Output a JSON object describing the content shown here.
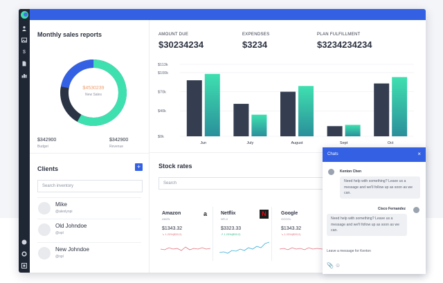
{
  "sales": {
    "title": "Monthly sales reports",
    "center_value": "$4530239",
    "center_label": "New Sales",
    "budget_value": "$342900",
    "budget_label": "Budget",
    "revenue_value": "$342900",
    "revenue_label": "Revenue",
    "donut_fraction": 0.58,
    "colors": {
      "green": "#3fe0b0",
      "blue": "#3461e4",
      "dark": "#2b3444"
    }
  },
  "clients": {
    "title": "Clients",
    "add_label": "+",
    "search_placeholder": "Search inventory",
    "items": [
      {
        "name": "Mike",
        "handle": "@alexlynpi"
      },
      {
        "name": "Old Johndoe",
        "handle": "@opl"
      },
      {
        "name": "New Johndoe",
        "handle": "@npl"
      }
    ]
  },
  "kpis": [
    {
      "label": "AMOUNT DUE",
      "value": "$30234234"
    },
    {
      "label": "EXPENDSES",
      "value": "$3234"
    },
    {
      "label": "PLAN FULFILLMENT",
      "value": "$3234234234"
    }
  ],
  "chart_data": {
    "type": "bar",
    "categories": [
      "Jun",
      "July",
      "August",
      "Sept",
      "Oct"
    ],
    "series": [
      {
        "values": [
          88,
          51,
          70,
          16,
          83
        ]
      },
      {
        "values": [
          98,
          34,
          79,
          18,
          93
        ]
      }
    ],
    "yticks": [
      "$0k",
      "$40k",
      "$70k",
      "$100k",
      "$113k"
    ],
    "ytick_values": [
      0,
      40,
      70,
      100,
      113
    ],
    "ylim": [
      0,
      113
    ],
    "colors": [
      "#353e51",
      "#3fe0b0"
    ]
  },
  "stocks": {
    "title": "Stock rates",
    "search_placeholder": "Search",
    "cards": [
      {
        "name": "Amazon",
        "ticker": "AMZN",
        "price": "$1343.32",
        "change": "1.23%($33.2)",
        "color": "#e36d7b",
        "logo": "a"
      },
      {
        "name": "Netflix",
        "ticker": "NFLX",
        "price": "$3323.33",
        "change": "1.23%($33.2)",
        "color": "#3aaed8",
        "logo": "N"
      },
      {
        "name": "Google",
        "ticker": "GOOGL",
        "price": "$1343.32",
        "change": "1.23%($33.2)",
        "color": "#e36d7b",
        "logo": ""
      }
    ]
  },
  "chat": {
    "title": "Chats",
    "close": "×",
    "messages": [
      {
        "name": "Kenton Chen",
        "text": "Need help with something? Leave us a message and we'll follow up as soon as we can."
      },
      {
        "name": "Cisco Fernandez",
        "text": "Need help with something? Leave us a message and we'll follow up as soon as we can."
      }
    ],
    "input_placeholder": "Leave a message for Kenton",
    "attach_icon": "📎",
    "emoji_icon": "☺"
  }
}
